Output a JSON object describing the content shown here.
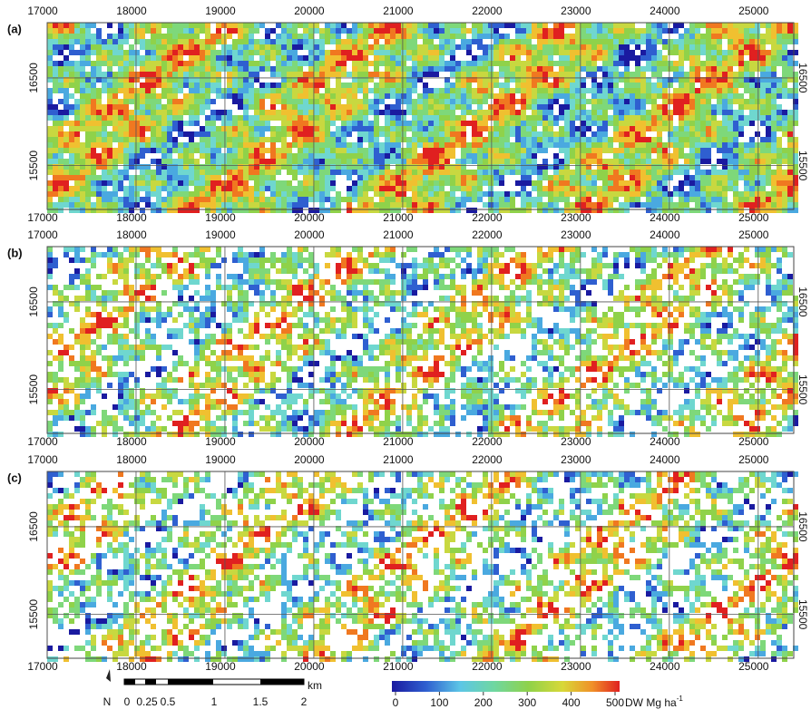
{
  "panels": [
    {
      "label": "(a)",
      "density": 0.93
    },
    {
      "label": "(b)",
      "density": 0.62
    },
    {
      "label": "(c)",
      "density": 0.55
    }
  ],
  "xticks": [
    17000,
    18000,
    19000,
    20000,
    21000,
    22000,
    23000,
    24000,
    25000
  ],
  "xlim": [
    17000,
    25400
  ],
  "yticks": [
    16500,
    15500
  ],
  "ylim": [
    15000,
    17130
  ],
  "scale_bar": {
    "ticks": [
      "0",
      "0.25",
      "0.5",
      "1",
      "1.5",
      "2"
    ],
    "unit": "km",
    "north": "N"
  },
  "colorbar": {
    "ticks": [
      0,
      100,
      200,
      300,
      400,
      500
    ],
    "unit": "DW Mg ha",
    "unit_exponent": "-1",
    "colors": [
      "#1a1aa0",
      "#2f5fd0",
      "#4aa9e0",
      "#6fd7cf",
      "#7ed87a",
      "#8fd24a",
      "#c8d840",
      "#f0c030",
      "#f07820",
      "#e02020"
    ]
  }
}
